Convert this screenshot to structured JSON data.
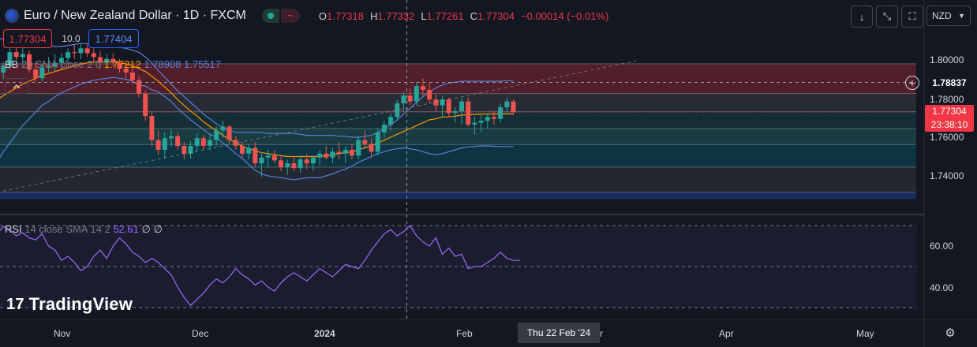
{
  "header": {
    "symbol_title": "Euro / New Zealand Dollar · 1D · FXCM",
    "status_icon": "~",
    "ohlc": [
      {
        "key": "O",
        "value": "1.77318"
      },
      {
        "key": "H",
        "value": "1.77332"
      },
      {
        "key": "L",
        "value": "1.77261"
      },
      {
        "key": "C",
        "value": "1.77304"
      }
    ],
    "change": "−0.00014 (−0.01%)",
    "currency": "NZD"
  },
  "trade": {
    "sell": "1.77304",
    "spread": "10.0",
    "buy": "1.77404"
  },
  "indicators": {
    "bb": {
      "name": "BB",
      "params": "20 SMA close 2 0",
      "basis": "1.77212",
      "upper": "1.78908",
      "lower": "1.75517"
    },
    "rsi": {
      "name": "RSI",
      "params": "14 close SMA 14 2",
      "value": "52.61",
      "extra1": "∅",
      "extra2": "∅"
    }
  },
  "price_axis": {
    "ticks": [
      "1.80000",
      "1.78000",
      "1.76000",
      "1.74000"
    ],
    "crosshair_price": "1.78837",
    "last_price": "1.77304",
    "countdown": "23:38:10"
  },
  "rsi_axis": {
    "ticks": [
      "60.00",
      "40.00"
    ]
  },
  "time_axis": {
    "ticks": [
      "Nov",
      "Dec",
      "2024",
      "Feb",
      "r",
      "Apr",
      "May"
    ],
    "hover_label": "Thu 22 Feb '24"
  },
  "branding": {
    "logo_text": "TradingView",
    "logo_mark": "17"
  },
  "colors": {
    "up": "#26a69a",
    "down": "#ef5350",
    "bb_band": "#5b7fd8",
    "bb_basis": "#ff9800",
    "rsi_line": "#9d6bff",
    "last_price": "#f23645"
  },
  "chart_data": {
    "type": "candlestick",
    "ylim": [
      1.728,
      1.81
    ],
    "candles": [
      {
        "o": 1.7995,
        "h": 1.803,
        "l": 1.7915,
        "c": 1.7935
      },
      {
        "o": 1.7935,
        "h": 1.799,
        "l": 1.79,
        "c": 1.797
      },
      {
        "o": 1.797,
        "h": 1.806,
        "l": 1.795,
        "c": 1.804
      },
      {
        "o": 1.804,
        "h": 1.808,
        "l": 1.8,
        "c": 1.8015
      },
      {
        "o": 1.8015,
        "h": 1.806,
        "l": 1.7975,
        "c": 1.803
      },
      {
        "o": 1.803,
        "h": 1.805,
        "l": 1.7935,
        "c": 1.795
      },
      {
        "o": 1.795,
        "h": 1.799,
        "l": 1.7885,
        "c": 1.7905
      },
      {
        "o": 1.7905,
        "h": 1.798,
        "l": 1.7885,
        "c": 1.796
      },
      {
        "o": 1.796,
        "h": 1.8015,
        "l": 1.7935,
        "c": 1.7965
      },
      {
        "o": 1.7965,
        "h": 1.803,
        "l": 1.794,
        "c": 1.7985
      },
      {
        "o": 1.7985,
        "h": 1.8035,
        "l": 1.795,
        "c": 1.801
      },
      {
        "o": 1.801,
        "h": 1.806,
        "l": 1.798,
        "c": 1.804
      },
      {
        "o": 1.804,
        "h": 1.808,
        "l": 1.8005,
        "c": 1.8035
      },
      {
        "o": 1.8035,
        "h": 1.8085,
        "l": 1.8005,
        "c": 1.806
      },
      {
        "o": 1.806,
        "h": 1.8085,
        "l": 1.8015,
        "c": 1.8035
      },
      {
        "o": 1.8035,
        "h": 1.806,
        "l": 1.7985,
        "c": 1.8015
      },
      {
        "o": 1.8015,
        "h": 1.8045,
        "l": 1.7955,
        "c": 1.7985
      },
      {
        "o": 1.7985,
        "h": 1.803,
        "l": 1.7955,
        "c": 1.8005
      },
      {
        "o": 1.8005,
        "h": 1.8035,
        "l": 1.7965,
        "c": 1.7985
      },
      {
        "o": 1.7985,
        "h": 1.8005,
        "l": 1.7935,
        "c": 1.7955
      },
      {
        "o": 1.7955,
        "h": 1.7985,
        "l": 1.7905,
        "c": 1.7935
      },
      {
        "o": 1.7935,
        "h": 1.7955,
        "l": 1.7875,
        "c": 1.7895
      },
      {
        "o": 1.7895,
        "h": 1.7915,
        "l": 1.7805,
        "c": 1.7825
      },
      {
        "o": 1.7825,
        "h": 1.784,
        "l": 1.7685,
        "c": 1.771
      },
      {
        "o": 1.771,
        "h": 1.7735,
        "l": 1.7555,
        "c": 1.7585
      },
      {
        "o": 1.7585,
        "h": 1.7635,
        "l": 1.7505,
        "c": 1.7535
      },
      {
        "o": 1.7535,
        "h": 1.7625,
        "l": 1.749,
        "c": 1.7595
      },
      {
        "o": 1.7595,
        "h": 1.764,
        "l": 1.755,
        "c": 1.7605
      },
      {
        "o": 1.7605,
        "h": 1.7625,
        "l": 1.7535,
        "c": 1.7555
      },
      {
        "o": 1.7555,
        "h": 1.7575,
        "l": 1.7485,
        "c": 1.7515
      },
      {
        "o": 1.7515,
        "h": 1.758,
        "l": 1.749,
        "c": 1.7555
      },
      {
        "o": 1.7555,
        "h": 1.762,
        "l": 1.7525,
        "c": 1.7595
      },
      {
        "o": 1.7595,
        "h": 1.761,
        "l": 1.7535,
        "c": 1.7555
      },
      {
        "o": 1.7555,
        "h": 1.7615,
        "l": 1.753,
        "c": 1.7585
      },
      {
        "o": 1.7585,
        "h": 1.7655,
        "l": 1.7555,
        "c": 1.7635
      },
      {
        "o": 1.7635,
        "h": 1.7685,
        "l": 1.7595,
        "c": 1.7655
      },
      {
        "o": 1.7655,
        "h": 1.7665,
        "l": 1.7565,
        "c": 1.7585
      },
      {
        "o": 1.7585,
        "h": 1.7605,
        "l": 1.7535,
        "c": 1.7555
      },
      {
        "o": 1.7555,
        "h": 1.7575,
        "l": 1.7495,
        "c": 1.7515
      },
      {
        "o": 1.7515,
        "h": 1.7565,
        "l": 1.7485,
        "c": 1.7545
      },
      {
        "o": 1.7545,
        "h": 1.7575,
        "l": 1.7445,
        "c": 1.7465
      },
      {
        "o": 1.7465,
        "h": 1.7515,
        "l": 1.7395,
        "c": 1.7495
      },
      {
        "o": 1.7495,
        "h": 1.7535,
        "l": 1.7445,
        "c": 1.7505
      },
      {
        "o": 1.7505,
        "h": 1.7535,
        "l": 1.7465,
        "c": 1.748
      },
      {
        "o": 1.748,
        "h": 1.7505,
        "l": 1.7425,
        "c": 1.7445
      },
      {
        "o": 1.7445,
        "h": 1.7485,
        "l": 1.7405,
        "c": 1.7465
      },
      {
        "o": 1.7465,
        "h": 1.7495,
        "l": 1.7425,
        "c": 1.744
      },
      {
        "o": 1.744,
        "h": 1.7505,
        "l": 1.7415,
        "c": 1.7485
      },
      {
        "o": 1.7485,
        "h": 1.7515,
        "l": 1.7435,
        "c": 1.7465
      },
      {
        "o": 1.7465,
        "h": 1.7505,
        "l": 1.7425,
        "c": 1.7495
      },
      {
        "o": 1.7495,
        "h": 1.7535,
        "l": 1.7455,
        "c": 1.7515
      },
      {
        "o": 1.7515,
        "h": 1.7555,
        "l": 1.7485,
        "c": 1.7495
      },
      {
        "o": 1.7495,
        "h": 1.7545,
        "l": 1.7465,
        "c": 1.7525
      },
      {
        "o": 1.7525,
        "h": 1.7575,
        "l": 1.7485,
        "c": 1.7515
      },
      {
        "o": 1.7515,
        "h": 1.7555,
        "l": 1.7465,
        "c": 1.7535
      },
      {
        "o": 1.7535,
        "h": 1.7565,
        "l": 1.7485,
        "c": 1.7505
      },
      {
        "o": 1.7505,
        "h": 1.7605,
        "l": 1.7485,
        "c": 1.7585
      },
      {
        "o": 1.7585,
        "h": 1.7635,
        "l": 1.7545,
        "c": 1.7565
      },
      {
        "o": 1.7565,
        "h": 1.7595,
        "l": 1.7495,
        "c": 1.7525
      },
      {
        "o": 1.7525,
        "h": 1.7645,
        "l": 1.7505,
        "c": 1.7625
      },
      {
        "o": 1.7625,
        "h": 1.7685,
        "l": 1.7595,
        "c": 1.7665
      },
      {
        "o": 1.7665,
        "h": 1.7725,
        "l": 1.7635,
        "c": 1.7705
      },
      {
        "o": 1.7705,
        "h": 1.7795,
        "l": 1.7685,
        "c": 1.7775
      },
      {
        "o": 1.7775,
        "h": 1.7835,
        "l": 1.7735,
        "c": 1.7815
      },
      {
        "o": 1.7815,
        "h": 1.7855,
        "l": 1.7765,
        "c": 1.7785
      },
      {
        "o": 1.7785,
        "h": 1.7885,
        "l": 1.7765,
        "c": 1.7865
      },
      {
        "o": 1.7865,
        "h": 1.7905,
        "l": 1.7815,
        "c": 1.7845
      },
      {
        "o": 1.7845,
        "h": 1.7885,
        "l": 1.7775,
        "c": 1.7795
      },
      {
        "o": 1.7795,
        "h": 1.7825,
        "l": 1.7735,
        "c": 1.7765
      },
      {
        "o": 1.7765,
        "h": 1.7815,
        "l": 1.7705,
        "c": 1.7795
      },
      {
        "o": 1.7795,
        "h": 1.7805,
        "l": 1.7705,
        "c": 1.7725
      },
      {
        "o": 1.7725,
        "h": 1.7755,
        "l": 1.7675,
        "c": 1.7735
      },
      {
        "o": 1.7735,
        "h": 1.7805,
        "l": 1.7665,
        "c": 1.7785
      },
      {
        "o": 1.7785,
        "h": 1.7805,
        "l": 1.7655,
        "c": 1.7665
      },
      {
        "o": 1.7665,
        "h": 1.7705,
        "l": 1.7615,
        "c": 1.7675
      },
      {
        "o": 1.7675,
        "h": 1.7715,
        "l": 1.7625,
        "c": 1.7685
      },
      {
        "o": 1.7685,
        "h": 1.7725,
        "l": 1.7645,
        "c": 1.7705
      },
      {
        "o": 1.7705,
        "h": 1.7735,
        "l": 1.7665,
        "c": 1.7695
      },
      {
        "o": 1.7695,
        "h": 1.7775,
        "l": 1.7675,
        "c": 1.7755
      },
      {
        "o": 1.7755,
        "h": 1.7805,
        "l": 1.7715,
        "c": 1.7785
      },
      {
        "o": 1.7785,
        "h": 1.7795,
        "l": 1.7715,
        "c": 1.773
      }
    ],
    "bb_upper": [
      1.812,
      1.8105,
      1.81,
      1.8095,
      1.809,
      1.8085,
      1.808,
      1.8075,
      1.8075,
      1.807,
      1.807,
      1.8075,
      1.808,
      1.8085,
      1.8085,
      1.8085,
      1.808,
      1.8075,
      1.807,
      1.8065,
      1.806,
      1.805,
      1.804,
      1.8015,
      1.7985,
      1.7945,
      1.791,
      1.7875,
      1.784,
      1.781,
      1.778,
      1.775,
      1.772,
      1.7695,
      1.767,
      1.765,
      1.7635,
      1.7625,
      1.7625,
      1.7625,
      1.7625,
      1.7625,
      1.762,
      1.762,
      1.762,
      1.762,
      1.762,
      1.7615,
      1.761,
      1.761,
      1.761,
      1.761,
      1.761,
      1.7605,
      1.7605,
      1.76,
      1.76,
      1.7605,
      1.761,
      1.7625,
      1.7645,
      1.7665,
      1.769,
      1.772,
      1.775,
      1.778,
      1.781,
      1.7835,
      1.7855,
      1.787,
      1.788,
      1.7885,
      1.789,
      1.789,
      1.789,
      1.789,
      1.789,
      1.789,
      1.789,
      1.7893,
      1.7891
    ],
    "bb_basis": [
      1.7795,
      1.7815,
      1.7835,
      1.7855,
      1.7875,
      1.789,
      1.7905,
      1.792,
      1.793,
      1.794,
      1.795,
      1.796,
      1.797,
      1.798,
      1.7985,
      1.799,
      1.799,
      1.799,
      1.799,
      1.7985,
      1.798,
      1.797,
      1.7955,
      1.794,
      1.7915,
      1.789,
      1.786,
      1.783,
      1.7795,
      1.7765,
      1.7735,
      1.771,
      1.768,
      1.7655,
      1.7635,
      1.761,
      1.759,
      1.757,
      1.7555,
      1.754,
      1.753,
      1.752,
      1.7515,
      1.751,
      1.7505,
      1.75,
      1.75,
      1.75,
      1.75,
      1.75,
      1.75,
      1.7505,
      1.751,
      1.7515,
      1.752,
      1.7525,
      1.7535,
      1.7545,
      1.7555,
      1.757,
      1.7585,
      1.76,
      1.7615,
      1.763,
      1.7645,
      1.766,
      1.7675,
      1.769,
      1.7695,
      1.7705,
      1.7705,
      1.771,
      1.7715,
      1.7715,
      1.7718,
      1.772,
      1.772,
      1.772,
      1.7721,
      1.7721,
      1.7721
    ],
    "bb_lower": [
      1.747,
      1.7525,
      1.757,
      1.7615,
      1.766,
      1.7695,
      1.773,
      1.7765,
      1.7785,
      1.781,
      1.783,
      1.7845,
      1.786,
      1.7875,
      1.7885,
      1.7895,
      1.79,
      1.7905,
      1.791,
      1.7905,
      1.79,
      1.789,
      1.787,
      1.7865,
      1.7845,
      1.7835,
      1.781,
      1.7785,
      1.775,
      1.772,
      1.769,
      1.7665,
      1.764,
      1.7615,
      1.76,
      1.757,
      1.7545,
      1.7515,
      1.749,
      1.746,
      1.743,
      1.741,
      1.74,
      1.7395,
      1.739,
      1.7385,
      1.738,
      1.7385,
      1.739,
      1.739,
      1.739,
      1.74,
      1.741,
      1.7425,
      1.7435,
      1.745,
      1.747,
      1.7485,
      1.75,
      1.7515,
      1.7525,
      1.7535,
      1.754,
      1.7545,
      1.754,
      1.7535,
      1.7525,
      1.7515,
      1.751,
      1.7515,
      1.7525,
      1.7535,
      1.7545,
      1.755,
      1.7552
    ],
    "bb_lower_tail": [
      1.7555,
      1.7555,
      1.7553,
      1.7552,
      1.7552,
      1.7552
    ],
    "zones": [
      {
        "from": 1.798,
        "to": 1.7826,
        "color": "rgba(242,54,69,0.28)"
      },
      {
        "from": 1.7826,
        "to": 1.7732,
        "color": "rgba(120,123,134,0.20)"
      },
      {
        "from": 1.7732,
        "to": 1.7645,
        "color": "rgba(38,166,154,0.16)"
      },
      {
        "from": 1.7645,
        "to": 1.7562,
        "color": "rgba(38,166,154,0.26)"
      },
      {
        "from": 1.7562,
        "to": 1.7445,
        "color": "rgba(0,188,212,0.18)"
      },
      {
        "from": 1.7445,
        "to": 1.7315,
        "color": "rgba(120,123,134,0.16)"
      },
      {
        "from": 1.7315,
        "to": 1.728,
        "color": "rgba(41,98,255,0.28)"
      }
    ],
    "trendline": {
      "from": [
        0,
        1.7315
      ],
      "to": [
        99,
        1.7995
      ]
    },
    "crosshair": {
      "price": 1.78837,
      "x_bar": 63.5
    },
    "rsi": {
      "ylim": [
        29,
        76
      ],
      "levels": [
        70,
        50,
        30
      ],
      "values": [
        66,
        69.5,
        68,
        65,
        66.5,
        64,
        63,
        66,
        60,
        58,
        53,
        55,
        52,
        48,
        50,
        55,
        58,
        54,
        60,
        64,
        61,
        57,
        55,
        52,
        54,
        52,
        49,
        46,
        40,
        35,
        31,
        34,
        37,
        41,
        44,
        42,
        45,
        49,
        46,
        44,
        41,
        43,
        40,
        38,
        42,
        45,
        47,
        45,
        43,
        46,
        49,
        47,
        45,
        48,
        51,
        50,
        49,
        53,
        58,
        62,
        66,
        68,
        65,
        67,
        70,
        65,
        62,
        60,
        64,
        56,
        59,
        55,
        56,
        49,
        50,
        50,
        52,
        54,
        57,
        54,
        53,
        53
      ],
      "signal": [
        58,
        57,
        56,
        55,
        54,
        53,
        52,
        51,
        50,
        49,
        48,
        47,
        46,
        45,
        44,
        43,
        43,
        43,
        44,
        45,
        46,
        47,
        48,
        49,
        50,
        51,
        52,
        53,
        54,
        55,
        55,
        55,
        55,
        55,
        54,
        53,
        53,
        52,
        52,
        52,
        52,
        52
      ]
    }
  }
}
